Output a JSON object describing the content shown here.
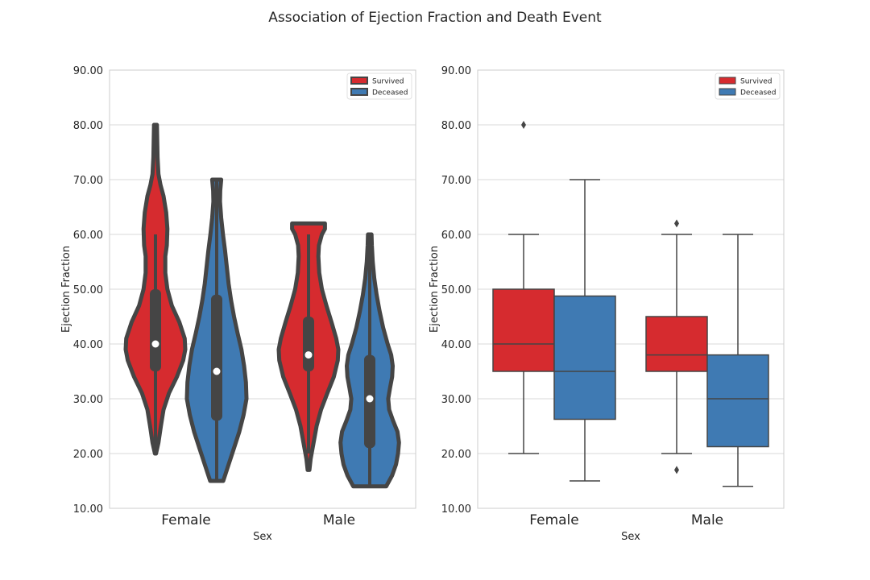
{
  "suptitle": "Association of Ejection Fraction and Death Event",
  "colors": {
    "survived": "#d62b2f",
    "deceased": "#3f7ab3",
    "violin_edge": "#454545",
    "box_edge": "#454545",
    "grid": "#d9d9d9",
    "spine": "#cccccc",
    "text": "#262626"
  },
  "chart_data": [
    {
      "type": "violin",
      "xlabel": "Sex",
      "ylabel": "Ejection Fraction",
      "ylim": [
        10,
        90
      ],
      "yticks": [
        "10.00",
        "20.00",
        "30.00",
        "40.00",
        "50.00",
        "60.00",
        "70.00",
        "80.00",
        "90.00"
      ],
      "categories": [
        "Female",
        "Male"
      ],
      "grid": true,
      "legend": {
        "position": "top-right",
        "entries": [
          "Survived",
          "Deceased"
        ]
      },
      "series": [
        {
          "name": "Survived",
          "groups": [
            {
              "category": "Female",
              "min": 20,
              "q1": 35,
              "median": 40,
              "q3": 50,
              "whisker_low": 20,
              "whisker_high": 60,
              "max": 80,
              "density": [
                [
                  20,
                  0.02
                ],
                [
                  22,
                  0.1
                ],
                [
                  25,
                  0.18
                ],
                [
                  28,
                  0.27
                ],
                [
                  31,
                  0.45
                ],
                [
                  34,
                  0.72
                ],
                [
                  37,
                  0.93
                ],
                [
                  39,
                  1.0
                ],
                [
                  41,
                  0.98
                ],
                [
                  44,
                  0.8
                ],
                [
                  47,
                  0.55
                ],
                [
                  50,
                  0.4
                ],
                [
                  53,
                  0.33
                ],
                [
                  56,
                  0.33
                ],
                [
                  58,
                  0.38
                ],
                [
                  61,
                  0.4
                ],
                [
                  64,
                  0.36
                ],
                [
                  67,
                  0.27
                ],
                [
                  69,
                  0.17
                ],
                [
                  71,
                  0.1
                ],
                [
                  74,
                  0.07
                ],
                [
                  77,
                  0.06
                ],
                [
                  80,
                  0.05
                ]
              ]
            },
            {
              "category": "Male",
              "min": 17,
              "q1": 35,
              "median": 38,
              "q3": 45,
              "whisker_low": 20,
              "whisker_high": 60,
              "max": 62,
              "density": [
                [
                  17,
                  0.03
                ],
                [
                  19,
                  0.07
                ],
                [
                  22,
                  0.17
                ],
                [
                  25,
                  0.27
                ],
                [
                  28,
                  0.42
                ],
                [
                  31,
                  0.63
                ],
                [
                  34,
                  0.85
                ],
                [
                  37,
                  0.98
                ],
                [
                  39,
                  1.0
                ],
                [
                  41,
                  0.93
                ],
                [
                  44,
                  0.77
                ],
                [
                  47,
                  0.6
                ],
                [
                  50,
                  0.45
                ],
                [
                  53,
                  0.36
                ],
                [
                  56,
                  0.33
                ],
                [
                  58,
                  0.35
                ],
                [
                  60,
                  0.45
                ],
                [
                  61,
                  0.55
                ],
                [
                  62,
                  0.55
                ]
              ]
            }
          ]
        },
        {
          "name": "Deceased",
          "groups": [
            {
              "category": "Female",
              "min": 15,
              "q1": 26,
              "median": 35,
              "q3": 49,
              "whisker_low": 15,
              "whisker_high": 70,
              "max": 70,
              "density": [
                [
                  15,
                  0.22
                ],
                [
                  18,
                  0.4
                ],
                [
                  21,
                  0.58
                ],
                [
                  24,
                  0.76
                ],
                [
                  27,
                  0.9
                ],
                [
                  30,
                  1.0
                ],
                [
                  33,
                  0.98
                ],
                [
                  36,
                  0.92
                ],
                [
                  39,
                  0.83
                ],
                [
                  42,
                  0.7
                ],
                [
                  45,
                  0.58
                ],
                [
                  48,
                  0.48
                ],
                [
                  51,
                  0.4
                ],
                [
                  54,
                  0.34
                ],
                [
                  57,
                  0.28
                ],
                [
                  60,
                  0.21
                ],
                [
                  63,
                  0.15
                ],
                [
                  66,
                  0.11
                ],
                [
                  68,
                  0.12
                ],
                [
                  70,
                  0.15
                ]
              ]
            },
            {
              "category": "Male",
              "min": 14,
              "q1": 21,
              "median": 30,
              "q3": 38,
              "whisker_low": 14,
              "whisker_high": 60,
              "max": 60,
              "density": [
                [
                  14,
                  0.55
                ],
                [
                  16,
                  0.75
                ],
                [
                  18,
                  0.88
                ],
                [
                  20,
                  0.95
                ],
                [
                  22,
                  0.98
                ],
                [
                  24,
                  0.93
                ],
                [
                  26,
                  0.78
                ],
                [
                  28,
                  0.65
                ],
                [
                  30,
                  0.62
                ],
                [
                  32,
                  0.68
                ],
                [
                  34,
                  0.75
                ],
                [
                  36,
                  0.77
                ],
                [
                  38,
                  0.72
                ],
                [
                  40,
                  0.6
                ],
                [
                  43,
                  0.45
                ],
                [
                  46,
                  0.33
                ],
                [
                  49,
                  0.23
                ],
                [
                  52,
                  0.15
                ],
                [
                  55,
                  0.1
                ],
                [
                  58,
                  0.07
                ],
                [
                  60,
                  0.06
                ]
              ]
            }
          ]
        }
      ]
    },
    {
      "type": "box",
      "xlabel": "Sex",
      "ylabel": "Ejection Fraction",
      "ylim": [
        10,
        90
      ],
      "yticks": [
        "10.00",
        "20.00",
        "30.00",
        "40.00",
        "50.00",
        "60.00",
        "70.00",
        "80.00",
        "90.00"
      ],
      "categories": [
        "Female",
        "Male"
      ],
      "grid": true,
      "legend": {
        "position": "top-right",
        "entries": [
          "Survived",
          "Deceased"
        ]
      },
      "series": [
        {
          "name": "Survived",
          "groups": [
            {
              "category": "Female",
              "whisker_low": 20,
              "q1": 35,
              "median": 40,
              "q3": 50,
              "whisker_high": 60,
              "outliers": [
                80
              ]
            },
            {
              "category": "Male",
              "whisker_low": 20,
              "q1": 35,
              "median": 38,
              "q3": 45,
              "whisker_high": 60,
              "outliers": [
                17,
                62
              ]
            }
          ]
        },
        {
          "name": "Deceased",
          "groups": [
            {
              "category": "Female",
              "whisker_low": 15,
              "q1": 26.25,
              "median": 35,
              "q3": 48.75,
              "whisker_high": 70,
              "outliers": []
            },
            {
              "category": "Male",
              "whisker_low": 14,
              "q1": 21.25,
              "median": 30,
              "q3": 38,
              "whisker_high": 60,
              "outliers": []
            }
          ]
        }
      ]
    }
  ]
}
